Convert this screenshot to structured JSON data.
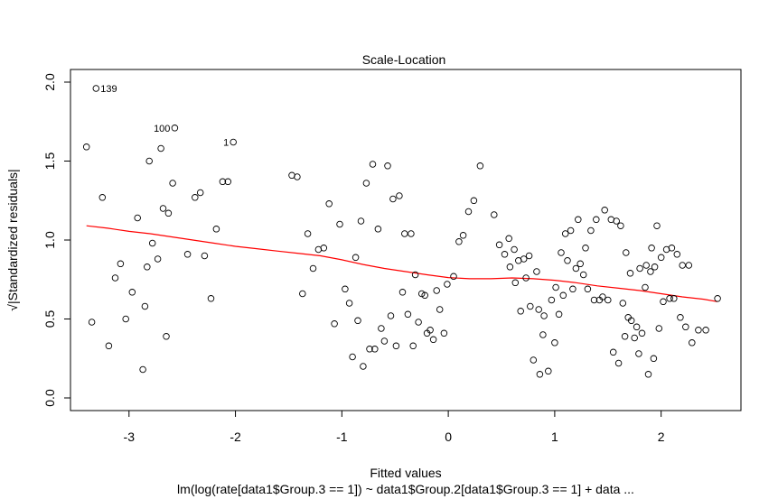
{
  "chart_data": {
    "type": "scatter",
    "title": "Scale-Location",
    "xlabel": "Fitted values",
    "ylabel": "√|Standardized residuals|",
    "subtitle": "lm(log(rate[data1$Group.3 == 1]) ~ data1$Group.2[data1$Group.3 == 1] + data ...",
    "xlim": [
      -3.55,
      2.75
    ],
    "ylim": [
      -0.08,
      2.08
    ],
    "x_ticks": [
      -3,
      -2,
      -1,
      0,
      1,
      2
    ],
    "x_tick_labels": [
      "-3",
      "-2",
      "-1",
      "0",
      "1",
      "2"
    ],
    "y_ticks": [
      0.0,
      0.5,
      1.0,
      1.5,
      2.0
    ],
    "y_tick_labels": [
      "0.0",
      "0.5",
      "1.0",
      "1.5",
      "2.0"
    ],
    "grid": false,
    "point_color": "#000000",
    "smooth_color": "#ff0000",
    "points": [
      {
        "x": -3.31,
        "y": 1.96,
        "label": "139"
      },
      {
        "x": -2.57,
        "y": 1.71,
        "label": "100"
      },
      {
        "x": -2.02,
        "y": 1.62,
        "label": "1"
      },
      {
        "x": -3.4,
        "y": 1.59
      },
      {
        "x": -3.35,
        "y": 0.48
      },
      {
        "x": -3.25,
        "y": 1.27
      },
      {
        "x": -3.19,
        "y": 0.33
      },
      {
        "x": -3.13,
        "y": 0.76
      },
      {
        "x": -3.08,
        "y": 0.85
      },
      {
        "x": -3.03,
        "y": 0.5
      },
      {
        "x": -2.97,
        "y": 0.67
      },
      {
        "x": -2.92,
        "y": 1.14
      },
      {
        "x": -2.87,
        "y": 0.18
      },
      {
        "x": -2.85,
        "y": 0.58
      },
      {
        "x": -2.83,
        "y": 0.83
      },
      {
        "x": -2.81,
        "y": 1.5
      },
      {
        "x": -2.78,
        "y": 0.98
      },
      {
        "x": -2.73,
        "y": 0.88
      },
      {
        "x": -2.7,
        "y": 1.58
      },
      {
        "x": -2.68,
        "y": 1.2
      },
      {
        "x": -2.65,
        "y": 0.39
      },
      {
        "x": -2.63,
        "y": 1.17
      },
      {
        "x": -2.59,
        "y": 1.36
      },
      {
        "x": -2.45,
        "y": 0.91
      },
      {
        "x": -2.38,
        "y": 1.27
      },
      {
        "x": -2.33,
        "y": 1.3
      },
      {
        "x": -2.29,
        "y": 0.9
      },
      {
        "x": -2.23,
        "y": 0.63
      },
      {
        "x": -2.18,
        "y": 1.07
      },
      {
        "x": -2.12,
        "y": 1.37
      },
      {
        "x": -2.07,
        "y": 1.37
      },
      {
        "x": -1.47,
        "y": 1.41
      },
      {
        "x": -1.42,
        "y": 1.4
      },
      {
        "x": -1.37,
        "y": 0.66
      },
      {
        "x": -1.32,
        "y": 1.04
      },
      {
        "x": -1.27,
        "y": 0.82
      },
      {
        "x": -1.22,
        "y": 0.94
      },
      {
        "x": -1.17,
        "y": 0.95
      },
      {
        "x": -1.12,
        "y": 1.23
      },
      {
        "x": -1.07,
        "y": 0.47
      },
      {
        "x": -1.02,
        "y": 1.1
      },
      {
        "x": -0.97,
        "y": 0.69
      },
      {
        "x": -0.93,
        "y": 0.6
      },
      {
        "x": -0.9,
        "y": 0.26
      },
      {
        "x": -0.87,
        "y": 0.89
      },
      {
        "x": -0.85,
        "y": 0.49
      },
      {
        "x": -0.82,
        "y": 1.12
      },
      {
        "x": -0.8,
        "y": 0.2
      },
      {
        "x": -0.77,
        "y": 1.36
      },
      {
        "x": -0.74,
        "y": 0.31
      },
      {
        "x": -0.71,
        "y": 1.48
      },
      {
        "x": -0.69,
        "y": 0.31
      },
      {
        "x": -0.66,
        "y": 1.07
      },
      {
        "x": -0.63,
        "y": 0.44
      },
      {
        "x": -0.6,
        "y": 0.36
      },
      {
        "x": -0.57,
        "y": 1.47
      },
      {
        "x": -0.54,
        "y": 0.52
      },
      {
        "x": -0.52,
        "y": 1.26
      },
      {
        "x": -0.49,
        "y": 0.33
      },
      {
        "x": -0.46,
        "y": 1.28
      },
      {
        "x": -0.43,
        "y": 0.67
      },
      {
        "x": -0.41,
        "y": 1.04
      },
      {
        "x": -0.38,
        "y": 0.53
      },
      {
        "x": -0.35,
        "y": 1.04
      },
      {
        "x": -0.33,
        "y": 0.33
      },
      {
        "x": -0.31,
        "y": 0.78
      },
      {
        "x": -0.28,
        "y": 0.48
      },
      {
        "x": -0.25,
        "y": 0.66
      },
      {
        "x": -0.22,
        "y": 0.65
      },
      {
        "x": -0.2,
        "y": 0.41
      },
      {
        "x": -0.17,
        "y": 0.43
      },
      {
        "x": -0.14,
        "y": 0.37
      },
      {
        "x": -0.11,
        "y": 0.68
      },
      {
        "x": -0.08,
        "y": 0.56
      },
      {
        "x": -0.04,
        "y": 0.41
      },
      {
        "x": -0.01,
        "y": 0.72
      },
      {
        "x": 0.05,
        "y": 0.77
      },
      {
        "x": 0.1,
        "y": 0.99
      },
      {
        "x": 0.14,
        "y": 1.03
      },
      {
        "x": 0.19,
        "y": 1.18
      },
      {
        "x": 0.24,
        "y": 1.25
      },
      {
        "x": 0.3,
        "y": 1.47
      },
      {
        "x": 0.43,
        "y": 1.16
      },
      {
        "x": 0.48,
        "y": 0.97
      },
      {
        "x": 0.53,
        "y": 0.91
      },
      {
        "x": 0.57,
        "y": 1.01
      },
      {
        "x": 0.58,
        "y": 0.83
      },
      {
        "x": 0.62,
        "y": 0.94
      },
      {
        "x": 0.63,
        "y": 0.73
      },
      {
        "x": 0.66,
        "y": 0.87
      },
      {
        "x": 0.68,
        "y": 0.55
      },
      {
        "x": 0.71,
        "y": 0.88
      },
      {
        "x": 0.73,
        "y": 0.76
      },
      {
        "x": 0.76,
        "y": 0.9
      },
      {
        "x": 0.77,
        "y": 0.58
      },
      {
        "x": 0.8,
        "y": 0.24
      },
      {
        "x": 0.83,
        "y": 0.8
      },
      {
        "x": 0.85,
        "y": 0.56
      },
      {
        "x": 0.86,
        "y": 0.15
      },
      {
        "x": 0.89,
        "y": 0.4
      },
      {
        "x": 0.9,
        "y": 0.52
      },
      {
        "x": 0.94,
        "y": 0.17
      },
      {
        "x": 0.97,
        "y": 0.62
      },
      {
        "x": 1.0,
        "y": 0.35
      },
      {
        "x": 1.01,
        "y": 0.7
      },
      {
        "x": 1.04,
        "y": 0.53
      },
      {
        "x": 1.06,
        "y": 0.92
      },
      {
        "x": 1.08,
        "y": 0.65
      },
      {
        "x": 1.1,
        "y": 1.04
      },
      {
        "x": 1.12,
        "y": 0.87
      },
      {
        "x": 1.15,
        "y": 1.06
      },
      {
        "x": 1.17,
        "y": 0.69
      },
      {
        "x": 1.2,
        "y": 0.82
      },
      {
        "x": 1.22,
        "y": 1.13
      },
      {
        "x": 1.24,
        "y": 0.85
      },
      {
        "x": 1.27,
        "y": 0.78
      },
      {
        "x": 1.29,
        "y": 0.95
      },
      {
        "x": 1.31,
        "y": 0.69
      },
      {
        "x": 1.34,
        "y": 1.06
      },
      {
        "x": 1.37,
        "y": 0.62
      },
      {
        "x": 1.39,
        "y": 1.13
      },
      {
        "x": 1.42,
        "y": 0.62
      },
      {
        "x": 1.45,
        "y": 0.64
      },
      {
        "x": 1.47,
        "y": 1.19
      },
      {
        "x": 1.5,
        "y": 0.62
      },
      {
        "x": 1.53,
        "y": 1.13
      },
      {
        "x": 1.55,
        "y": 0.29
      },
      {
        "x": 1.58,
        "y": 1.12
      },
      {
        "x": 1.6,
        "y": 0.22
      },
      {
        "x": 1.62,
        "y": 1.09
      },
      {
        "x": 1.64,
        "y": 0.6
      },
      {
        "x": 1.66,
        "y": 0.39
      },
      {
        "x": 1.67,
        "y": 0.92
      },
      {
        "x": 1.69,
        "y": 0.51
      },
      {
        "x": 1.71,
        "y": 0.79
      },
      {
        "x": 1.72,
        "y": 0.49
      },
      {
        "x": 1.75,
        "y": 0.38
      },
      {
        "x": 1.77,
        "y": 0.45
      },
      {
        "x": 1.79,
        "y": 0.28
      },
      {
        "x": 1.8,
        "y": 0.82
      },
      {
        "x": 1.82,
        "y": 0.41
      },
      {
        "x": 1.85,
        "y": 0.7
      },
      {
        "x": 1.86,
        "y": 0.84
      },
      {
        "x": 1.88,
        "y": 0.15
      },
      {
        "x": 1.9,
        "y": 0.8
      },
      {
        "x": 1.91,
        "y": 0.95
      },
      {
        "x": 1.93,
        "y": 0.25
      },
      {
        "x": 1.94,
        "y": 0.83
      },
      {
        "x": 1.96,
        "y": 1.09
      },
      {
        "x": 1.98,
        "y": 0.44
      },
      {
        "x": 2.0,
        "y": 0.89
      },
      {
        "x": 2.02,
        "y": 0.61
      },
      {
        "x": 2.05,
        "y": 0.94
      },
      {
        "x": 2.08,
        "y": 0.63
      },
      {
        "x": 2.1,
        "y": 0.95
      },
      {
        "x": 2.12,
        "y": 0.63
      },
      {
        "x": 2.15,
        "y": 0.91
      },
      {
        "x": 2.18,
        "y": 0.51
      },
      {
        "x": 2.2,
        "y": 0.84
      },
      {
        "x": 2.23,
        "y": 0.45
      },
      {
        "x": 2.26,
        "y": 0.84
      },
      {
        "x": 2.29,
        "y": 0.35
      },
      {
        "x": 2.35,
        "y": 0.43
      },
      {
        "x": 2.42,
        "y": 0.43
      },
      {
        "x": 2.53,
        "y": 0.63
      }
    ],
    "smooth": {
      "x": [
        -3.4,
        -3.2,
        -3.0,
        -2.8,
        -2.6,
        -2.4,
        -2.2,
        -2.0,
        -1.8,
        -1.6,
        -1.4,
        -1.2,
        -1.0,
        -0.8,
        -0.6,
        -0.4,
        -0.2,
        0.0,
        0.2,
        0.4,
        0.6,
        0.8,
        1.0,
        1.2,
        1.4,
        1.6,
        1.8,
        2.0,
        2.2,
        2.4,
        2.53
      ],
      "y": [
        1.09,
        1.075,
        1.055,
        1.04,
        1.02,
        1.0,
        0.98,
        0.96,
        0.945,
        0.93,
        0.915,
        0.9,
        0.875,
        0.845,
        0.82,
        0.8,
        0.78,
        0.762,
        0.755,
        0.755,
        0.76,
        0.755,
        0.745,
        0.73,
        0.71,
        0.695,
        0.68,
        0.66,
        0.64,
        0.625,
        0.61
      ]
    }
  }
}
